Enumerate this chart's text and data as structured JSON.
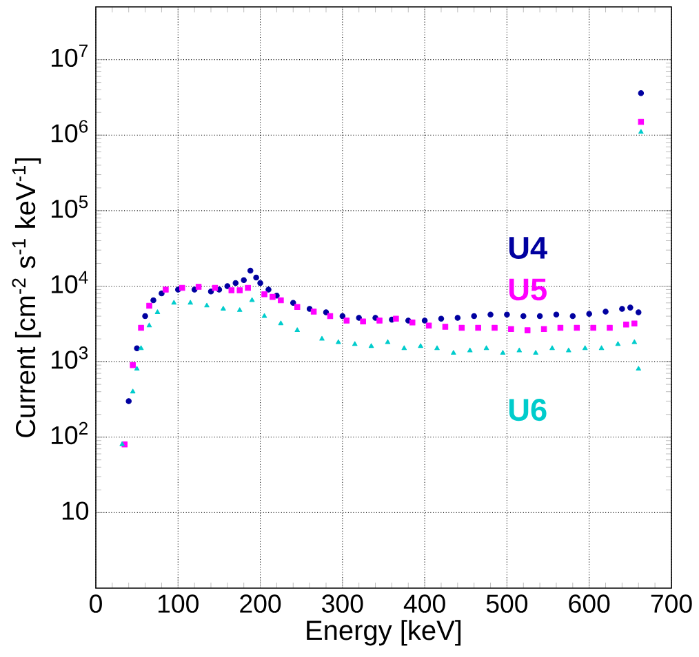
{
  "chart_data": {
    "type": "scatter",
    "xlabel": "Energy [keV]",
    "ylabel": "Current [cm$^{-2}$ s$^{-1}$ keV$^{-1}$]",
    "series": [
      {
        "name": "U4",
        "color": "#0000a0",
        "marker": "circle",
        "x": [
          40,
          50,
          60,
          70,
          80,
          100,
          120,
          140,
          150,
          160,
          170,
          180,
          188,
          195,
          200,
          210,
          220,
          240,
          260,
          280,
          300,
          320,
          340,
          360,
          380,
          400,
          420,
          440,
          460,
          480,
          500,
          520,
          540,
          560,
          580,
          600,
          620,
          640,
          650,
          660,
          663
        ],
        "values": [
          300,
          1500,
          4000,
          6500,
          8000,
          9000,
          9000,
          8500,
          9000,
          10000,
          11000,
          12000,
          16000,
          13000,
          11000,
          9000,
          7500,
          6000,
          5000,
          4500,
          4000,
          3800,
          3800,
          3600,
          3500,
          3500,
          3700,
          3800,
          4000,
          4200,
          4200,
          4000,
          4000,
          4200,
          4000,
          4300,
          4600,
          5000,
          5200,
          4500,
          3600000
        ]
      },
      {
        "name": "U5",
        "color": "#ff00ff",
        "marker": "square",
        "x": [
          35,
          45,
          55,
          65,
          85,
          105,
          125,
          145,
          165,
          175,
          185,
          205,
          215,
          225,
          245,
          265,
          285,
          305,
          325,
          345,
          365,
          385,
          405,
          425,
          445,
          465,
          485,
          505,
          525,
          545,
          565,
          585,
          605,
          625,
          645,
          655,
          663
        ],
        "values": [
          80,
          900,
          2800,
          5500,
          9000,
          9500,
          9800,
          9500,
          8800,
          8800,
          9500,
          7800,
          7200,
          6500,
          5300,
          4600,
          4000,
          3500,
          3400,
          3500,
          3700,
          3300,
          3000,
          2900,
          2800,
          2800,
          2800,
          2700,
          2600,
          2700,
          2800,
          2800,
          2800,
          2800,
          3100,
          3200,
          1500000
        ]
      },
      {
        "name": "U6",
        "color": "#00cccc",
        "marker": "triangle",
        "x": [
          32,
          45,
          50,
          55,
          65,
          75,
          95,
          115,
          135,
          155,
          175,
          190,
          205,
          225,
          245,
          275,
          295,
          315,
          335,
          355,
          375,
          395,
          415,
          435,
          455,
          475,
          495,
          515,
          535,
          555,
          575,
          595,
          615,
          635,
          655,
          660,
          663
        ],
        "values": [
          80,
          400,
          800,
          1500,
          3000,
          4500,
          6000,
          6000,
          5500,
          5000,
          4800,
          6500,
          4000,
          3200,
          2600,
          2000,
          1800,
          1700,
          1600,
          1800,
          1500,
          1600,
          1500,
          1300,
          1400,
          1500,
          1300,
          1400,
          1300,
          1500,
          1400,
          1500,
          1500,
          1700,
          1800,
          800,
          1100000
        ]
      }
    ],
    "xlim": [
      0,
      700
    ],
    "xticks": [
      0,
      100,
      200,
      300,
      400,
      500,
      600,
      700
    ],
    "ylim": [
      1,
      50000000
    ],
    "yticks": [
      10,
      {
        "value": 100,
        "label": "10$^{2}$"
      },
      {
        "value": 1000,
        "label": "10$^{3}$"
      },
      {
        "value": 10000,
        "label": "10$^{4}$"
      },
      {
        "value": 100000,
        "label": "10$^{5}$"
      },
      {
        "value": 1000000,
        "label": "10$^{6}$"
      },
      {
        "value": 10000000,
        "label": "10$^{7}$"
      }
    ],
    "log": "y",
    "grid": true,
    "legend": false
  }
}
